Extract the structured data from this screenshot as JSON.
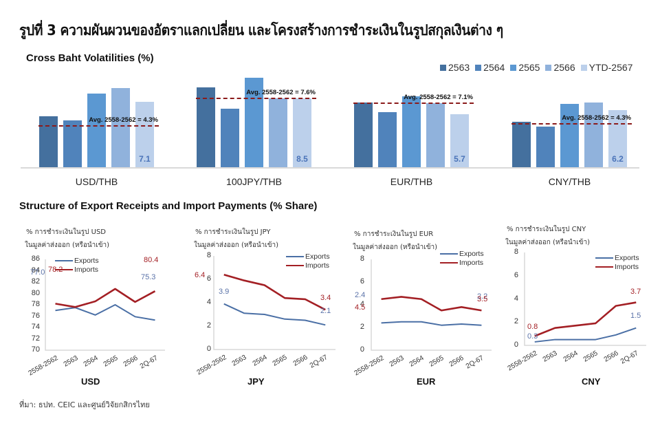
{
  "header": {
    "title": "รูปที่ 3 ความผันผวนของอัตราแลกเปลี่ยน และโครงสร้างการชำระเงินในรูปสกุลเงินต่าง ๆ"
  },
  "volatility_section": {
    "title": "Cross Baht Volatilities (%)",
    "legend": [
      {
        "label": "2563",
        "color": "#44709e"
      },
      {
        "label": "2564",
        "color": "#5083bb"
      },
      {
        "label": "2565",
        "color": "#5b98d2"
      },
      {
        "label": "2566",
        "color": "#90b2dc"
      },
      {
        "label": "YTD-2567",
        "color": "#bcd0eb"
      }
    ]
  },
  "structure_section": {
    "title": "Structure of Export Receipts and Import Payments (% Share)",
    "legend_exports": "Exports",
    "legend_imports": "Imports",
    "export_color": "#4a6fa5",
    "import_color": "#a31f24"
  },
  "source": "ที่มา: ธปท. CEIC และศูนย์วิจัยกสิกรไทย",
  "chart_data": [
    {
      "type": "bar",
      "title": "Cross Baht Volatilities (%)",
      "categories": [
        "USD/THB",
        "100JPY/THB",
        "EUR/THB",
        "CNY/THB"
      ],
      "series": [
        {
          "name": "2563",
          "values": [
            5.5,
            9.8,
            7.0,
            4.9
          ]
        },
        {
          "name": "2564",
          "values": [
            5.1,
            7.2,
            5.9,
            4.4
          ]
        },
        {
          "name": "2565",
          "values": [
            8.0,
            11.0,
            7.6,
            6.9
          ]
        },
        {
          "name": "2566",
          "values": [
            8.6,
            8.5,
            6.9,
            7.0
          ]
        },
        {
          "name": "YTD-2567",
          "values": [
            7.1,
            8.5,
            5.7,
            6.2
          ]
        }
      ],
      "data_labels": [
        "7.1",
        "8.5",
        "5.7",
        "6.2"
      ],
      "reference_lines": [
        {
          "category": "USD/THB",
          "label": "Avg. 2558-2562 = 4.3%",
          "value": 4.3
        },
        {
          "category": "100JPY/THB",
          "label": "Avg. 2558-2562 = 7.6%",
          "value": 7.6
        },
        {
          "category": "EUR/THB",
          "label": "Avg. 2558-2562 = 7.1%",
          "value": 7.1
        },
        {
          "category": "CNY/THB",
          "label": "Avg. 2558-2562 = 4.3%",
          "value": 4.3
        }
      ],
      "legend_position": "top-right",
      "grid": false
    },
    {
      "type": "line",
      "title": "USD",
      "subtitle_line1": "% การชำระเงินในรูป USD",
      "subtitle_line2": "ในมูลค่าส่งออก (หรือนำเข้า)",
      "x": [
        "2558-2562",
        "2563",
        "2564",
        "2565",
        "2566",
        "2Q-67"
      ],
      "series": [
        {
          "name": "Exports",
          "values": [
            77.0,
            77.5,
            76.2,
            78.0,
            75.9,
            75.3
          ]
        },
        {
          "name": "Imports",
          "values": [
            78.2,
            77.6,
            78.6,
            80.8,
            78.5,
            80.4
          ]
        }
      ],
      "data_labels": {
        "Exports": [
          "77.0",
          "75.3"
        ],
        "Imports": [
          "78.2",
          "80.4"
        ]
      },
      "yticks": [
        "86",
        "84",
        "82",
        "80",
        "78",
        "76",
        "74",
        "72",
        "70"
      ],
      "ylim": [
        70,
        86
      ],
      "legend_position": "top-left"
    },
    {
      "type": "line",
      "title": "JPY",
      "subtitle_line1": "% การชำระเงินในรูป JPY",
      "subtitle_line2": "ในมูลค่าส่งออก (หรือนำเข้า)",
      "x": [
        "2558-2562",
        "2563",
        "2564",
        "2565",
        "2566",
        "2Q-67"
      ],
      "series": [
        {
          "name": "Exports",
          "values": [
            3.9,
            3.1,
            3.0,
            2.6,
            2.5,
            2.1
          ]
        },
        {
          "name": "Imports",
          "values": [
            6.4,
            5.9,
            5.5,
            4.4,
            4.3,
            3.4
          ]
        }
      ],
      "data_labels": {
        "Exports": [
          "3.9",
          "2.1"
        ],
        "Imports": [
          "6.4",
          "3.4"
        ]
      },
      "yticks": [
        "8",
        "6",
        "4",
        "2",
        "0"
      ],
      "ylim": [
        0,
        8
      ],
      "legend_position": "top-right"
    },
    {
      "type": "line",
      "title": "EUR",
      "subtitle_line1": "% การชำระเงินในรูป EUR",
      "subtitle_line2": "ในมูลค่าส่งออก (หรือนำเข้า)",
      "x": [
        "2558-2562",
        "2563",
        "2564",
        "2565",
        "2566",
        "2Q-67"
      ],
      "series": [
        {
          "name": "Exports",
          "values": [
            2.4,
            2.5,
            2.5,
            2.2,
            2.3,
            2.2
          ]
        },
        {
          "name": "Imports",
          "values": [
            4.5,
            4.7,
            4.5,
            3.5,
            3.8,
            3.5
          ]
        }
      ],
      "data_labels": {
        "Exports": [
          "2.4",
          "2.2"
        ],
        "Imports": [
          "4.5",
          "3.5"
        ]
      },
      "yticks": [
        "8",
        "6",
        "4",
        "2",
        "0"
      ],
      "ylim": [
        0,
        8
      ],
      "legend_position": "top-right"
    },
    {
      "type": "line",
      "title": "CNY",
      "subtitle_line1": "% การชำระเงินในรูป CNY",
      "subtitle_line2": "ในมูลค่าส่งออก (หรือนำเข้า)",
      "x": [
        "2558-2562",
        "2563",
        "2564",
        "2565",
        "2566",
        "2Q-67"
      ],
      "series": [
        {
          "name": "Exports",
          "values": [
            0.3,
            0.5,
            0.5,
            0.5,
            0.9,
            1.5
          ]
        },
        {
          "name": "Imports",
          "values": [
            0.8,
            1.5,
            1.7,
            1.9,
            3.4,
            3.7
          ]
        }
      ],
      "data_labels": {
        "Exports": [
          "0.3",
          "1.5"
        ],
        "Imports": [
          "0.8",
          "3.7"
        ]
      },
      "yticks": [
        "8",
        "6",
        "4",
        "2",
        "0"
      ],
      "ylim": [
        0,
        8
      ],
      "legend_position": "top-right"
    }
  ]
}
